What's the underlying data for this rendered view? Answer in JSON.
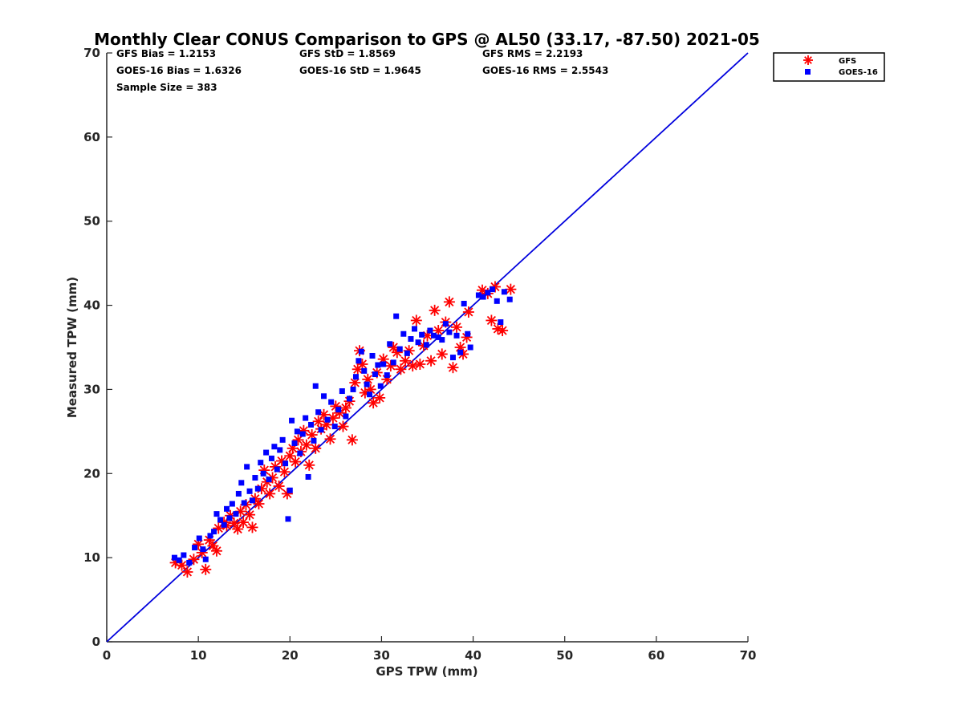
{
  "chart_data": {
    "type": "scatter",
    "title": "Monthly Clear CONUS Comparison to GPS @ AL50 (33.17, -87.50) 2021-05",
    "xlabel": "GPS TPW (mm)",
    "ylabel": "Measured TPW (mm)",
    "xlim": [
      0,
      70
    ],
    "ylim": [
      0,
      70
    ],
    "xticks": [
      0,
      10,
      20,
      30,
      40,
      50,
      60,
      70
    ],
    "yticks": [
      0,
      10,
      20,
      30,
      40,
      50,
      60,
      70
    ],
    "grid": false,
    "legend_position": "top-right outside",
    "stats": [
      [
        "GFS Bias = 1.2153",
        "GFS StD = 1.8569",
        "GFS RMS = 2.2193"
      ],
      [
        "GOES-16 Bias = 1.6326",
        "GOES-16 StD = 1.9645",
        "GOES-16 RMS = 2.5543"
      ],
      [
        "Sample Size = 383"
      ]
    ],
    "reference_line": {
      "x": [
        0,
        70
      ],
      "y": [
        0,
        70
      ],
      "color": "#0000dd"
    },
    "series": [
      {
        "name": "GFS",
        "marker": "asterisk",
        "color": "#ff0000",
        "points": [
          [
            7.5,
            9.4
          ],
          [
            8.2,
            9.1
          ],
          [
            8.8,
            8.3
          ],
          [
            9.5,
            9.8
          ],
          [
            10.0,
            11.6
          ],
          [
            10.4,
            10.6
          ],
          [
            10.8,
            8.6
          ],
          [
            11.2,
            12.1
          ],
          [
            11.6,
            11.4
          ],
          [
            12.0,
            10.8
          ],
          [
            12.2,
            13.5
          ],
          [
            12.8,
            14.2
          ],
          [
            13.1,
            13.8
          ],
          [
            13.5,
            15.0
          ],
          [
            13.9,
            14.1
          ],
          [
            14.3,
            13.4
          ],
          [
            14.6,
            15.5
          ],
          [
            14.9,
            14.2
          ],
          [
            15.2,
            16.3
          ],
          [
            15.6,
            15.1
          ],
          [
            15.9,
            13.6
          ],
          [
            16.2,
            17.0
          ],
          [
            16.6,
            16.4
          ],
          [
            16.9,
            18.2
          ],
          [
            17.2,
            20.4
          ],
          [
            17.5,
            19.0
          ],
          [
            17.8,
            17.6
          ],
          [
            18.1,
            19.5
          ],
          [
            18.4,
            20.8
          ],
          [
            18.8,
            18.5
          ],
          [
            19.1,
            21.5
          ],
          [
            19.4,
            20.2
          ],
          [
            19.7,
            17.6
          ],
          [
            20.0,
            22.1
          ],
          [
            20.3,
            23.0
          ],
          [
            20.6,
            21.4
          ],
          [
            20.9,
            24.0
          ],
          [
            21.2,
            22.6
          ],
          [
            21.5,
            25.1
          ],
          [
            21.8,
            23.4
          ],
          [
            22.1,
            21.0
          ],
          [
            22.4,
            24.6
          ],
          [
            22.8,
            23.0
          ],
          [
            23.1,
            26.2
          ],
          [
            23.4,
            25.3
          ],
          [
            23.7,
            27.0
          ],
          [
            24.0,
            25.8
          ],
          [
            24.4,
            24.1
          ],
          [
            24.7,
            26.6
          ],
          [
            25.0,
            28.0
          ],
          [
            25.4,
            27.2
          ],
          [
            25.8,
            25.6
          ],
          [
            26.1,
            27.8
          ],
          [
            26.5,
            28.6
          ],
          [
            26.8,
            24.0
          ],
          [
            27.1,
            30.8
          ],
          [
            27.4,
            32.4
          ],
          [
            27.6,
            34.6
          ],
          [
            27.9,
            33.0
          ],
          [
            28.2,
            29.6
          ],
          [
            28.5,
            31.2
          ],
          [
            28.8,
            30.0
          ],
          [
            29.1,
            28.4
          ],
          [
            29.5,
            32.0
          ],
          [
            29.8,
            29.0
          ],
          [
            30.2,
            33.6
          ],
          [
            30.6,
            31.2
          ],
          [
            31.0,
            32.8
          ],
          [
            31.3,
            35.0
          ],
          [
            31.7,
            34.4
          ],
          [
            32.1,
            32.4
          ],
          [
            32.6,
            33.4
          ],
          [
            33.0,
            34.6
          ],
          [
            33.4,
            32.8
          ],
          [
            33.8,
            38.2
          ],
          [
            34.2,
            33.0
          ],
          [
            34.6,
            35.2
          ],
          [
            35.0,
            36.4
          ],
          [
            35.4,
            33.4
          ],
          [
            35.8,
            39.4
          ],
          [
            36.2,
            37.0
          ],
          [
            36.6,
            34.2
          ],
          [
            37.0,
            38.0
          ],
          [
            37.4,
            40.4
          ],
          [
            37.8,
            32.6
          ],
          [
            38.2,
            37.4
          ],
          [
            38.6,
            35.0
          ],
          [
            38.9,
            34.2
          ],
          [
            39.3,
            36.2
          ],
          [
            39.5,
            39.2
          ],
          [
            41.0,
            41.8
          ],
          [
            41.6,
            41.4
          ],
          [
            42.0,
            38.2
          ],
          [
            42.4,
            42.2
          ],
          [
            42.7,
            37.2
          ],
          [
            43.2,
            37.0
          ],
          [
            44.1,
            41.9
          ]
        ]
      },
      {
        "name": "GOES-16",
        "marker": "square",
        "color": "#0000ff",
        "points": [
          [
            7.4,
            10.0
          ],
          [
            7.9,
            9.7
          ],
          [
            8.4,
            10.3
          ],
          [
            9.0,
            9.4
          ],
          [
            9.6,
            11.2
          ],
          [
            10.1,
            12.3
          ],
          [
            10.5,
            11.0
          ],
          [
            10.8,
            9.8
          ],
          [
            11.3,
            12.6
          ],
          [
            11.7,
            13.1
          ],
          [
            12.0,
            15.2
          ],
          [
            12.4,
            14.5
          ],
          [
            12.8,
            13.9
          ],
          [
            13.1,
            15.8
          ],
          [
            13.4,
            14.7
          ],
          [
            13.7,
            16.4
          ],
          [
            14.1,
            15.2
          ],
          [
            14.4,
            17.6
          ],
          [
            14.7,
            18.9
          ],
          [
            15.0,
            16.5
          ],
          [
            15.3,
            20.8
          ],
          [
            15.6,
            17.9
          ],
          [
            15.9,
            16.8
          ],
          [
            16.2,
            19.5
          ],
          [
            16.5,
            18.2
          ],
          [
            16.8,
            21.3
          ],
          [
            17.1,
            20.0
          ],
          [
            17.4,
            22.5
          ],
          [
            17.7,
            19.3
          ],
          [
            18.0,
            21.8
          ],
          [
            18.3,
            23.2
          ],
          [
            18.6,
            20.5
          ],
          [
            18.9,
            22.8
          ],
          [
            19.2,
            24.0
          ],
          [
            19.5,
            21.2
          ],
          [
            19.8,
            14.6
          ],
          [
            20.0,
            18.0
          ],
          [
            20.2,
            26.3
          ],
          [
            20.5,
            23.6
          ],
          [
            20.8,
            25.0
          ],
          [
            21.1,
            22.4
          ],
          [
            21.4,
            24.7
          ],
          [
            21.7,
            26.6
          ],
          [
            22.0,
            19.6
          ],
          [
            22.3,
            25.8
          ],
          [
            22.6,
            23.9
          ],
          [
            22.8,
            30.4
          ],
          [
            23.1,
            27.3
          ],
          [
            23.4,
            25.2
          ],
          [
            23.7,
            29.2
          ],
          [
            24.1,
            26.4
          ],
          [
            24.5,
            28.5
          ],
          [
            24.9,
            25.6
          ],
          [
            25.3,
            27.6
          ],
          [
            25.7,
            29.8
          ],
          [
            26.1,
            26.8
          ],
          [
            26.5,
            28.9
          ],
          [
            26.9,
            30.0
          ],
          [
            27.2,
            31.5
          ],
          [
            27.5,
            33.4
          ],
          [
            27.8,
            34.5
          ],
          [
            28.1,
            32.2
          ],
          [
            28.4,
            30.6
          ],
          [
            28.7,
            29.4
          ],
          [
            29.0,
            34.0
          ],
          [
            29.3,
            31.8
          ],
          [
            29.6,
            32.9
          ],
          [
            29.9,
            30.4
          ],
          [
            30.2,
            33.0
          ],
          [
            30.6,
            31.7
          ],
          [
            30.9,
            35.4
          ],
          [
            31.3,
            33.2
          ],
          [
            31.6,
            38.7
          ],
          [
            32.0,
            34.8
          ],
          [
            32.4,
            36.6
          ],
          [
            32.8,
            34.3
          ],
          [
            33.2,
            36.0
          ],
          [
            33.6,
            37.2
          ],
          [
            34.0,
            35.6
          ],
          [
            34.4,
            36.5
          ],
          [
            34.9,
            35.3
          ],
          [
            35.3,
            37.0
          ],
          [
            35.7,
            36.4
          ],
          [
            36.2,
            36.2
          ],
          [
            36.6,
            35.9
          ],
          [
            37.0,
            37.8
          ],
          [
            37.4,
            36.8
          ],
          [
            37.8,
            33.8
          ],
          [
            38.2,
            36.4
          ],
          [
            38.6,
            34.4
          ],
          [
            39.0,
            40.2
          ],
          [
            39.4,
            36.6
          ],
          [
            39.7,
            35.0
          ],
          [
            40.6,
            41.2
          ],
          [
            41.1,
            41.0
          ],
          [
            41.6,
            41.5
          ],
          [
            42.1,
            41.9
          ],
          [
            42.6,
            40.5
          ],
          [
            43.0,
            38.0
          ],
          [
            43.4,
            41.6
          ],
          [
            44.0,
            40.7
          ]
        ]
      }
    ]
  }
}
